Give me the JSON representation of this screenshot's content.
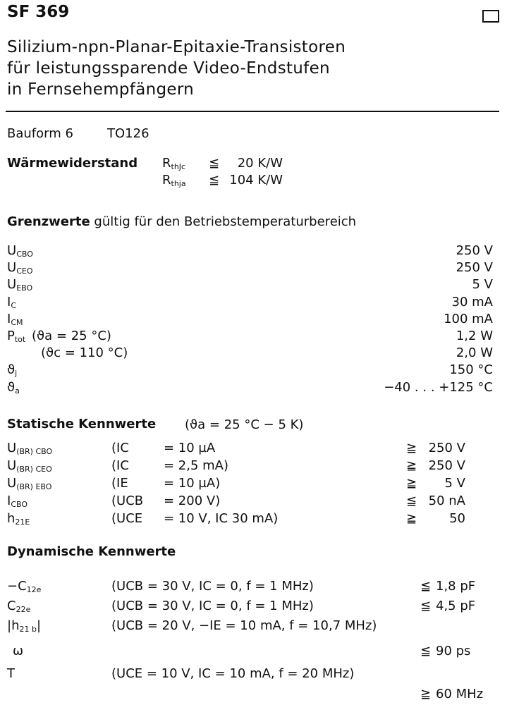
{
  "header": {
    "title": "SF 369",
    "subtitle_lines": [
      "Silizium-npn-Planar-Epitaxie-Transistoren",
      "für leistungssparende Video-Endstufen",
      "in Fernsehempfängern"
    ]
  },
  "package": {
    "label": "Bauform 6",
    "value": "TO126"
  },
  "thermal": {
    "label": "Wärmewiderstand",
    "rows": [
      {
        "sym": "R",
        "sub": "thJc",
        "sign": "≦",
        "value": "20 K/W"
      },
      {
        "sym": "R",
        "sub": "thja",
        "sign": "≦",
        "value": "104 K/W"
      }
    ]
  },
  "limits": {
    "heading_bold": "Grenzwerte",
    "heading_rest": "gültig für den Betriebstemperaturbereich",
    "rows": [
      {
        "sym": "U",
        "sub": "CBO",
        "cond": "",
        "value": "250 V"
      },
      {
        "sym": "U",
        "sub": "CEO",
        "cond": "",
        "value": "250 V"
      },
      {
        "sym": "U",
        "sub": "EBO",
        "cond": "",
        "value": "5 V"
      },
      {
        "sym": "I",
        "sub": "C",
        "cond": "",
        "value": "30 mA"
      },
      {
        "sym": "I",
        "sub": "CM",
        "cond": "",
        "value": "100 mA"
      },
      {
        "sym": "P",
        "sub": "tot",
        "cond": "(ϑa = 25 °C)",
        "value": "1,2 W"
      },
      {
        "sym": "",
        "sub": "",
        "cond": "(ϑc = 110 °C)",
        "value": "2,0 W"
      },
      {
        "sym": "ϑ",
        "sub": "j",
        "cond": "",
        "value": "150 °C"
      },
      {
        "sym": "ϑ",
        "sub": "a",
        "cond": "",
        "value": "−40 . . . +125 °C"
      }
    ]
  },
  "static": {
    "heading": "Statische Kennwerte",
    "condition": "(ϑa = 25 °C − 5 K)",
    "rows": [
      {
        "sym": "U",
        "sub": "(BR) CBO",
        "cond": "(IC",
        "eq": "= 10 µA",
        "sign": "≧",
        "value": "250 V"
      },
      {
        "sym": "U",
        "sub": "(BR) CEO",
        "cond": "(IC",
        "eq": "= 2,5 mA)",
        "sign": "≧",
        "value": "250 V"
      },
      {
        "sym": "U",
        "sub": "(BR) EBO",
        "cond": "(IE",
        "eq": "= 10 µA)",
        "sign": "≧",
        "value": "5 V"
      },
      {
        "sym": "I",
        "sub": "CBO",
        "cond": "(UCB",
        "eq": "= 200 V)",
        "sign": "≦",
        "value": "50 nA"
      },
      {
        "sym": "h",
        "sub": "21E",
        "cond": "(UCE",
        "eq": "= 10 V, IC 30 mA)",
        "sign": "≧",
        "value": "50"
      }
    ]
  },
  "dynamic": {
    "heading": "Dynamische Kennwerte",
    "rows": [
      {
        "sym": "−C",
        "sub": "12e",
        "cond": "(UCB = 30 V,   IC = 0, f = 1 MHz)",
        "sign": "≦",
        "value": "1,8 pF"
      },
      {
        "sym": "C",
        "sub": "22e",
        "cond": "(UCB = 30 V,   IC = 0, f = 1 MHz)",
        "sign": "≦",
        "value": "4,5 pF"
      },
      {
        "sym": "|h",
        "sub": "21 b",
        "sym_end": "|",
        "cond": "(UCB = 20 V,  −IE = 10 mA, f = 10,7 MHz)",
        "sign": "",
        "value": ""
      },
      {
        "sym": "ω",
        "sub": "",
        "cond": "",
        "sign": "≦",
        "value": "90 ps"
      },
      {
        "sym": "T",
        "sub": "",
        "cond": "(UCE = 10 V, IC = 10 mA, f = 20 MHz)",
        "sign": "",
        "value": ""
      },
      {
        "sym": "",
        "sub": "",
        "cond": "",
        "sign": "≧",
        "value": "60 MHz"
      }
    ]
  }
}
